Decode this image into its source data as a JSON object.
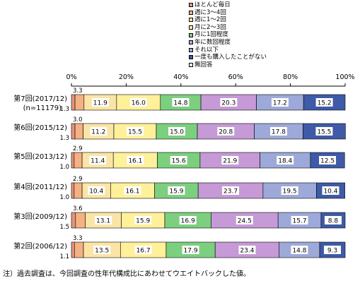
{
  "chart_data": {
    "type": "bar",
    "orientation": "horizontal",
    "stacked": true,
    "percent": true,
    "xlim": [
      0,
      100
    ],
    "x_ticks": [
      "0%",
      "20%",
      "40%",
      "60%",
      "80%",
      "100%"
    ],
    "grid": false,
    "legend_position": "top-right",
    "categories": [
      "第7回(2017/12)",
      "第6回(2015/12)",
      "第5回(2013/12)",
      "第4回(2011/12)",
      "第3回(2009/12)",
      "第2回(2006/12)"
    ],
    "sample_note": "(n=11179)",
    "series": [
      {
        "name": "ほとんど毎日",
        "values": [
          1.3,
          1.3,
          1.0,
          1.0,
          1.5,
          1.1
        ],
        "labels": [
          "1.3",
          "1.3",
          "1.0",
          "1.0",
          "1.5",
          "1.1"
        ]
      },
      {
        "name": "週に3～4回",
        "values": [
          3.3,
          3.0,
          2.9,
          2.9,
          3.6,
          3.3
        ],
        "labels": [
          "3.3",
          "3.0",
          "2.9",
          "2.9",
          "3.6",
          "3.3"
        ]
      },
      {
        "name": "週に1～2回",
        "values": [
          11.9,
          11.2,
          11.4,
          10.4,
          13.1,
          13.5
        ],
        "labels": [
          "11.9",
          "11.2",
          "11.4",
          "10.4",
          "13.1",
          "13.5"
        ]
      },
      {
        "name": "月に2～3回",
        "values": [
          16.0,
          15.5,
          16.1,
          16.1,
          15.9,
          16.7
        ],
        "labels": [
          "16.0",
          "15.5",
          "16.1",
          "16.1",
          "15.9",
          "16.7"
        ]
      },
      {
        "name": "月に1回程度",
        "values": [
          14.8,
          15.0,
          15.6,
          15.9,
          16.9,
          17.9
        ],
        "labels": [
          "14.8",
          "15.0",
          "15.6",
          "15.9",
          "16.9",
          "17.9"
        ]
      },
      {
        "name": "年に数回程度",
        "values": [
          20.3,
          20.8,
          21.9,
          23.7,
          24.5,
          23.4
        ],
        "labels": [
          "20.3",
          "20.8",
          "21.9",
          "23.7",
          "24.5",
          "23.4"
        ]
      },
      {
        "name": "それ以下",
        "values": [
          17.2,
          17.8,
          18.4,
          19.5,
          15.7,
          14.8
        ],
        "labels": [
          "17.2",
          "17.8",
          "18.4",
          "19.5",
          "15.7",
          "14.8"
        ]
      },
      {
        "name": "一度も購入したことがない",
        "values": [
          15.2,
          15.5,
          12.5,
          10.4,
          8.8,
          9.3
        ],
        "labels": [
          "15.2",
          "15.5",
          "12.5",
          "10.4",
          "8.8",
          "9.3"
        ]
      },
      {
        "name": "無回答",
        "values": [
          0,
          0,
          0,
          0,
          0,
          0
        ],
        "labels": [
          "",
          "",
          "",
          "",
          "",
          ""
        ]
      }
    ],
    "colors": [
      "#e8927c",
      "#f4b183",
      "#fbe5a6",
      "#fff09a",
      "#7ccf7f",
      "#c59ad6",
      "#9da9d8",
      "#3e5aa8",
      "#ffffff"
    ],
    "note": "注）過去調査は、今回調査の性年代構成比にあわせてウエイトバックした値。"
  }
}
